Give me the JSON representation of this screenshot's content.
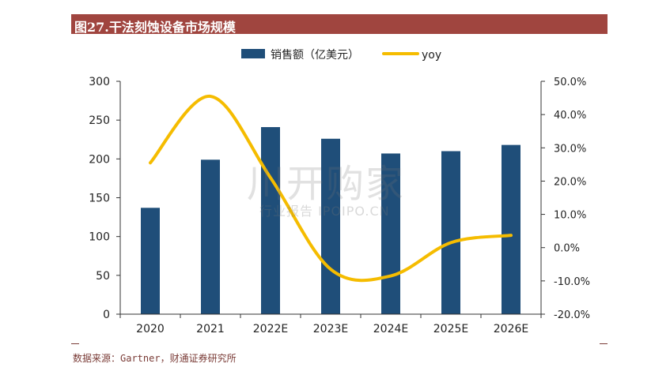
{
  "header": {
    "title": "图27.干法刻蚀设备市场规模"
  },
  "source": "数据来源：Gartner，财通证券研究所",
  "watermark": {
    "brand": "川开购家",
    "sub": "行业报告 IPOIPO.CN"
  },
  "colors": {
    "title_bg": "#A0453F",
    "bar": "#1F4E79",
    "line": "#F5BC00",
    "source": "#7A3B36"
  },
  "chart_data": {
    "type": "bar",
    "categories": [
      "2020",
      "2021",
      "2022E",
      "2023E",
      "2024E",
      "2025E",
      "2026E"
    ],
    "series": [
      {
        "name": "销售额（亿美元）",
        "type": "bar",
        "axis": "left",
        "values": [
          137,
          199,
          241,
          226,
          207,
          210,
          218
        ]
      },
      {
        "name": "yoy",
        "type": "line",
        "axis": "right",
        "smooth": true,
        "values": [
          25.5,
          45.5,
          21.0,
          -6.5,
          -8.5,
          1.5,
          3.7
        ]
      }
    ],
    "y_left": {
      "ylim": [
        0,
        300
      ],
      "ticks": [
        "0",
        "50",
        "100",
        "150",
        "200",
        "250",
        "300"
      ]
    },
    "y_right": {
      "ylim": [
        -20,
        50
      ],
      "ticks": [
        "-20.0%",
        "-10.0%",
        "0.0%",
        "10.0%",
        "20.0%",
        "30.0%",
        "40.0%",
        "50.0%"
      ]
    },
    "legend_position": "top-center",
    "grid": false
  }
}
